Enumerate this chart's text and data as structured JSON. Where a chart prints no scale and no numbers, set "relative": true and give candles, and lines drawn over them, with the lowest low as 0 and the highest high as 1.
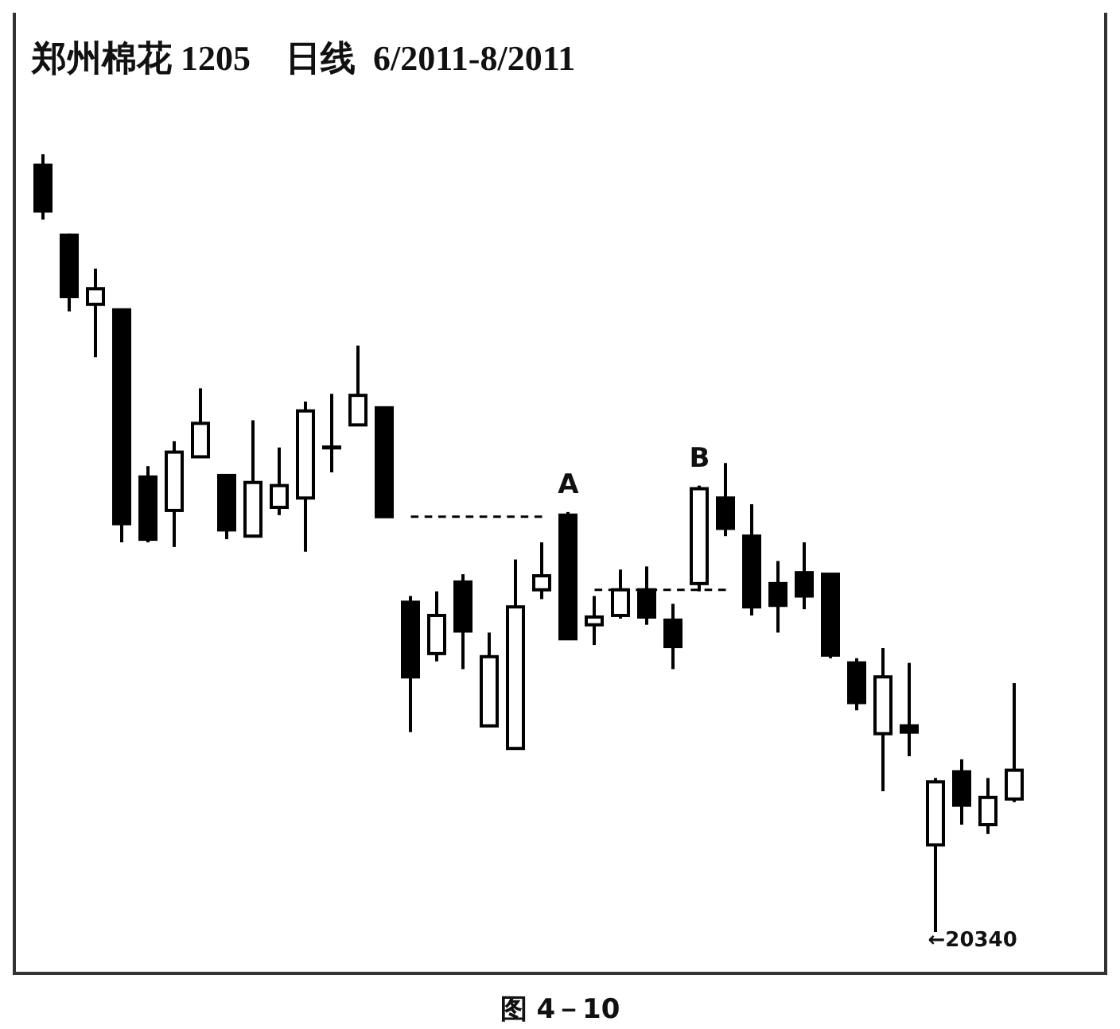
{
  "chart_data": {
    "type": "candlestick",
    "title": "郑州棉花 1205    日线  6/2011-8/2011",
    "relative": true,
    "color": "#000000",
    "categories": [
      null,
      null,
      null,
      null,
      null,
      null,
      null,
      null,
      null,
      null,
      null,
      null,
      null,
      null,
      null,
      null,
      null,
      null,
      null,
      null,
      null,
      null,
      null,
      null,
      null,
      null,
      null,
      null,
      null,
      null,
      null,
      null,
      null,
      null,
      null,
      null,
      null,
      null
    ],
    "ohlc": [
      [
        0.986,
        1,
        0.916,
        0.927
      ],
      [
        0.896,
        0.898,
        0.798,
        0.817
      ],
      [
        0.807,
        0.853,
        0.739,
        0.827
      ],
      [
        0.8,
        0.8,
        0.501,
        0.525
      ],
      [
        0.585,
        0.599,
        0.501,
        0.505
      ],
      [
        0.542,
        0.631,
        0.495,
        0.617
      ],
      [
        0.611,
        0.699,
        0.611,
        0.654
      ],
      [
        0.587,
        0.587,
        0.505,
        0.517
      ],
      [
        0.509,
        0.658,
        0.509,
        0.578
      ],
      [
        0.546,
        0.623,
        0.536,
        0.574
      ],
      [
        0.558,
        0.682,
        0.489,
        0.67
      ],
      [
        0.623,
        0.692,
        0.591,
        0.623
      ],
      [
        0.652,
        0.754,
        0.652,
        0.69
      ],
      [
        0.674,
        0.674,
        0.534,
        0.534
      ],
      [
        0.424,
        0.432,
        0.257,
        0.328
      ],
      [
        0.358,
        0.438,
        0.348,
        0.407
      ],
      [
        0.45,
        0.46,
        0.338,
        0.387
      ],
      [
        0.265,
        0.385,
        0.265,
        0.354
      ],
      [
        0.236,
        0.479,
        0.236,
        0.418
      ],
      [
        0.44,
        0.501,
        0.428,
        0.458
      ],
      [
        0.536,
        0.54,
        0.377,
        0.377
      ],
      [
        0.395,
        0.432,
        0.369,
        0.405
      ],
      [
        0.407,
        0.466,
        0.403,
        0.44
      ],
      [
        0.44,
        0.47,
        0.395,
        0.405
      ],
      [
        0.401,
        0.422,
        0.338,
        0.367
      ],
      [
        0.448,
        0.574,
        0.438,
        0.57
      ],
      [
        0.558,
        0.603,
        0.509,
        0.519
      ],
      [
        0.509,
        0.55,
        0.407,
        0.418
      ],
      [
        0.448,
        0.477,
        0.385,
        0.42
      ],
      [
        0.462,
        0.501,
        0.415,
        0.432
      ],
      [
        0.46,
        0.46,
        0.352,
        0.356
      ],
      [
        0.346,
        0.352,
        0.285,
        0.295
      ],
      [
        0.255,
        0.365,
        0.181,
        0.328
      ],
      [
        0.265,
        0.346,
        0.226,
        0.257
      ],
      [
        0.112,
        0.198,
        0,
        0.193
      ],
      [
        0.206,
        0.222,
        0.138,
        0.163
      ],
      [
        0.138,
        0.198,
        0.126,
        0.173
      ],
      [
        0.171,
        0.32,
        0.167,
        0.208
      ]
    ],
    "series": [
      {
        "type": "line",
        "color": "#000000",
        "line_style": "dashed",
        "marker": "none",
        "values": [
          null,
          null,
          null,
          null,
          null,
          null,
          null,
          null,
          null,
          null,
          null,
          null,
          null,
          null,
          0.534,
          0.534,
          0.534,
          0.534,
          0.534,
          0.534,
          null,
          null,
          null,
          null,
          null,
          null,
          null,
          null,
          null,
          null,
          null,
          null,
          null,
          null,
          null,
          null,
          null,
          null
        ]
      },
      {
        "type": "line",
        "color": "#000000",
        "line_style": "dashed",
        "marker": "none",
        "values": [
          null,
          null,
          null,
          null,
          null,
          null,
          null,
          null,
          null,
          null,
          null,
          null,
          null,
          null,
          null,
          null,
          null,
          null,
          null,
          null,
          null,
          0.44,
          0.44,
          0.44,
          0.44,
          0.44,
          0.44,
          null,
          null,
          null,
          null,
          null,
          null,
          null,
          null,
          null,
          null,
          null
        ]
      }
    ],
    "annotations": [
      {
        "text": "A",
        "y": 0.54
      },
      {
        "text": "B",
        "y": 0.574
      },
      "←20340",
      "图 4－10"
    ]
  }
}
